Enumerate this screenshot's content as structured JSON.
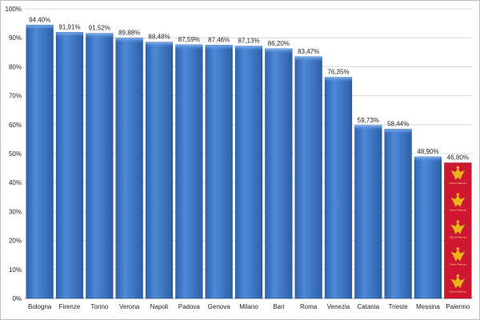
{
  "chart_data": {
    "type": "bar",
    "title": "",
    "xlabel": "",
    "ylabel": "",
    "ylim": [
      0,
      100
    ],
    "y_ticks": [
      "0%",
      "10%",
      "20%",
      "30%",
      "40%",
      "50%",
      "60%",
      "70%",
      "80%",
      "90%",
      "100%"
    ],
    "grid": true,
    "legend": "none",
    "categories": [
      "Bologna",
      "Firenze",
      "Torino",
      "Verona",
      "Napoli",
      "Padova",
      "Genova",
      "Milano",
      "Bari",
      "Roma",
      "Venezia",
      "Catania",
      "Trieste",
      "Messina",
      "Palermo"
    ],
    "values": [
      94.4,
      91.91,
      91.52,
      89.88,
      88.48,
      87.59,
      87.46,
      87.13,
      86.2,
      83.47,
      76.35,
      59.73,
      58.44,
      48.9,
      46.8
    ],
    "value_labels": [
      "94,40%",
      "91,91%",
      "91,52%",
      "89,88%",
      "88,48%",
      "87,59%",
      "87,46%",
      "87,13%",
      "86,20%",
      "83,47%",
      "76,35%",
      "59,73%",
      "58,44%",
      "48,90%",
      "46,80%"
    ],
    "colors": {
      "bar": "#3b77c8",
      "bar_highlight": "#cf1732",
      "grid": "#d9d9d9"
    },
    "highlight_category": "Palermo",
    "highlight_fill": {
      "emblem": "eagle-crest-icon",
      "repeat": 5,
      "caption": "Città di Palermo"
    }
  }
}
